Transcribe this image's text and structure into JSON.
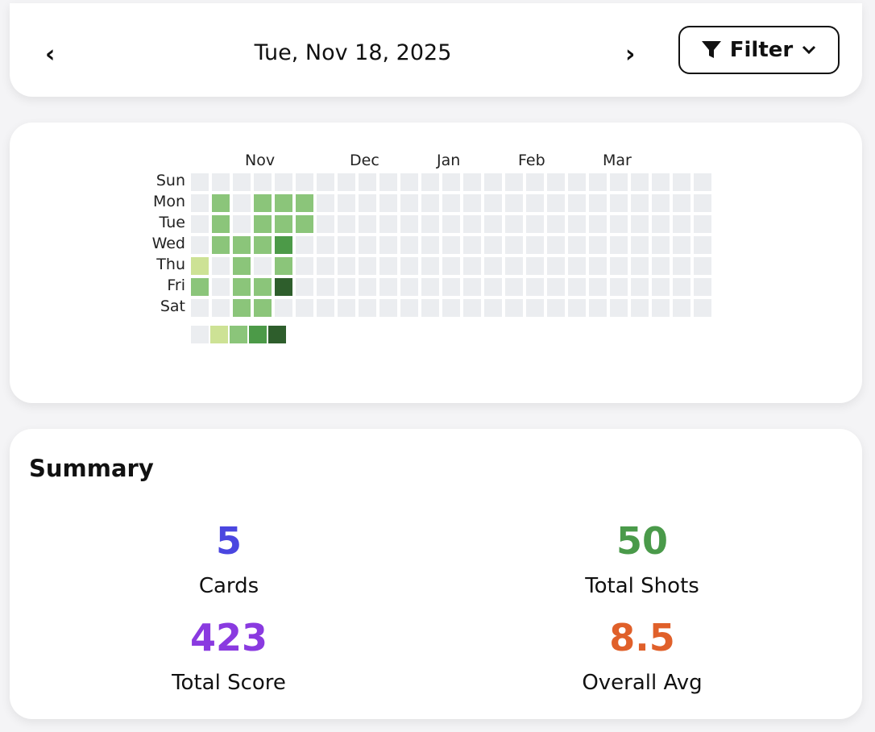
{
  "header": {
    "date": "Tue, Nov 18, 2025",
    "filter_label": "Filter"
  },
  "heatmap": {
    "months": [
      "Nov",
      "Dec",
      "Jan",
      "Feb",
      "Mar"
    ],
    "days": [
      "Sun",
      "Mon",
      "Tue",
      "Wed",
      "Thu",
      "Fri",
      "Sat"
    ],
    "colors": [
      "#ebedf0",
      "#cde295",
      "#8bc57a",
      "#4c9a48",
      "#2e5e2c"
    ],
    "weeks": [
      [
        0,
        0,
        0,
        0,
        1,
        2,
        0
      ],
      [
        0,
        2,
        2,
        2,
        0,
        0,
        0
      ],
      [
        0,
        0,
        0,
        2,
        2,
        2,
        2
      ],
      [
        0,
        2,
        2,
        2,
        0,
        2,
        2
      ],
      [
        0,
        2,
        2,
        3,
        2,
        4,
        0
      ],
      [
        0,
        2,
        2,
        0,
        0,
        0,
        0
      ],
      [
        0,
        0,
        0,
        0,
        0,
        0,
        0
      ],
      [
        0,
        0,
        0,
        0,
        0,
        0,
        0
      ],
      [
        0,
        0,
        0,
        0,
        0,
        0,
        0
      ],
      [
        0,
        0,
        0,
        0,
        0,
        0,
        0
      ],
      [
        0,
        0,
        0,
        0,
        0,
        0,
        0
      ],
      [
        0,
        0,
        0,
        0,
        0,
        0,
        0
      ],
      [
        0,
        0,
        0,
        0,
        0,
        0,
        0
      ],
      [
        0,
        0,
        0,
        0,
        0,
        0,
        0
      ],
      [
        0,
        0,
        0,
        0,
        0,
        0,
        0
      ],
      [
        0,
        0,
        0,
        0,
        0,
        0,
        0
      ],
      [
        0,
        0,
        0,
        0,
        0,
        0,
        0
      ],
      [
        0,
        0,
        0,
        0,
        0,
        0,
        0
      ],
      [
        0,
        0,
        0,
        0,
        0,
        0,
        0
      ],
      [
        0,
        0,
        0,
        0,
        0,
        0,
        0
      ],
      [
        0,
        0,
        0,
        0,
        0,
        0,
        0
      ],
      [
        0,
        0,
        0,
        0,
        0,
        0,
        0
      ],
      [
        0,
        0,
        0,
        0,
        0,
        0,
        0
      ],
      [
        0,
        0,
        0,
        0,
        0,
        0,
        0
      ],
      [
        0,
        0,
        0,
        0,
        0,
        0,
        0
      ]
    ]
  },
  "summary": {
    "title": "Summary",
    "cards": {
      "value": "5",
      "label": "Cards",
      "color": "#4a46e0"
    },
    "shots": {
      "value": "50",
      "label": "Total Shots",
      "color": "#4a9a4a"
    },
    "score": {
      "value": "423",
      "label": "Total Score",
      "color": "#8a3ae0"
    },
    "avg": {
      "value": "8.5",
      "label": "Overall Avg",
      "color": "#e0602a"
    }
  }
}
